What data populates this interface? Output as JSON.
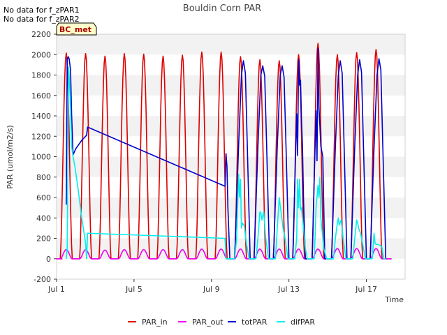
{
  "notes": [
    "No data for f_zPAR1",
    "No data for f_zPAR2"
  ],
  "site_label": "BC_met",
  "chart_data": {
    "type": "line",
    "title": "Bouldin Corn PAR",
    "xlabel": "Time",
    "ylabel": "PAR (umol/m2/s)",
    "ylim": [
      -200,
      2200
    ],
    "xlim": [
      1,
      19
    ],
    "yticks": [
      -200,
      0,
      200,
      400,
      600,
      800,
      1000,
      1200,
      1400,
      1600,
      1800,
      2000,
      2200
    ],
    "xticks": [
      {
        "value": 1,
        "label": "Jul 1"
      },
      {
        "value": 5,
        "label": "Jul 5"
      },
      {
        "value": 9,
        "label": "Jul 9"
      },
      {
        "value": 13,
        "label": "Jul 13"
      },
      {
        "value": 17,
        "label": "Jul 17"
      }
    ],
    "grid": "horizontal bands",
    "legend_position": "bottom",
    "series": [
      {
        "name": "PAR_in",
        "color": "#dd0000",
        "days": [
          1,
          2,
          3,
          4,
          5,
          6,
          7,
          8,
          9,
          10,
          11,
          12,
          13,
          14,
          15,
          16,
          17
        ],
        "daily_peak": [
          2015,
          2010,
          1985,
          2010,
          2005,
          1985,
          1995,
          2025,
          2025,
          1980,
          1950,
          1940,
          2000,
          2110,
          2000,
          2020,
          2050
        ]
      },
      {
        "name": "PAR_out",
        "color": "#ee00ee",
        "days": [
          1,
          2,
          3,
          4,
          5,
          6,
          7,
          8,
          9,
          10,
          11,
          12,
          13,
          14,
          15,
          16,
          17
        ],
        "daily_peak": [
          90,
          90,
          85,
          90,
          90,
          90,
          90,
          95,
          95,
          95,
          95,
          95,
          95,
          95,
          100,
          100,
          100
        ]
      },
      {
        "name": "totPAR",
        "color": "#0000cc",
        "x": [
          1.5,
          1.55,
          1.6,
          1.65,
          1.72,
          1.78,
          1.85,
          1.9,
          2.0,
          2.3,
          2.55,
          2.6,
          9.7,
          9.75,
          9.8,
          9.85,
          9.95,
          10.0,
          10.2,
          10.4,
          10.55,
          10.65,
          10.75,
          10.85,
          11.0,
          11.2,
          11.4,
          11.55,
          11.65,
          11.75,
          11.85,
          12.0,
          12.2,
          12.4,
          12.55,
          12.65,
          12.75,
          12.85,
          13.0,
          13.2,
          13.4,
          13.45,
          13.5,
          13.55,
          13.6,
          13.65,
          13.7,
          13.75,
          13.85,
          14.0,
          14.2,
          14.4,
          14.45,
          14.5,
          14.55,
          14.6,
          14.65,
          14.75,
          14.85,
          15.0,
          15.2,
          15.4,
          15.55,
          15.65,
          15.75,
          15.85,
          16.0,
          16.2,
          16.4,
          16.55,
          16.65,
          16.75,
          16.85,
          17.0,
          17.2,
          17.4,
          17.55,
          17.65,
          17.75,
          17.85,
          18.0
        ],
        "y": [
          530,
          1950,
          1980,
          1960,
          1850,
          1400,
          1020,
          1040,
          1080,
          1160,
          1210,
          1290,
          710,
          1030,
          900,
          500,
          0,
          0,
          0,
          1100,
          1800,
          1940,
          1820,
          1100,
          0,
          0,
          1100,
          1800,
          1890,
          1790,
          1100,
          0,
          0,
          1100,
          1800,
          1890,
          1780,
          1100,
          0,
          0,
          1420,
          1010,
          1950,
          1700,
          1750,
          1350,
          1100,
          600,
          0,
          0,
          0,
          1450,
          960,
          2060,
          1500,
          1300,
          1100,
          1000,
          0,
          0,
          0,
          1100,
          1800,
          1940,
          1820,
          1100,
          0,
          0,
          1100,
          1800,
          1950,
          1830,
          1100,
          0,
          0,
          1100,
          1800,
          1960,
          1850,
          1100,
          0
        ]
      },
      {
        "name": "difPAR",
        "color": "#00eeee",
        "x": [
          1.5,
          1.55,
          1.62,
          1.7,
          1.78,
          1.85,
          1.95,
          2.1,
          2.3,
          2.5,
          2.55,
          2.6,
          9.7,
          9.75,
          10.0,
          10.2,
          10.3,
          10.4,
          10.45,
          10.5,
          10.55,
          10.6,
          10.7,
          10.8,
          10.95,
          11.0,
          11.3,
          11.4,
          11.5,
          11.55,
          11.6,
          11.7,
          11.8,
          11.95,
          12.0,
          12.3,
          12.4,
          12.5,
          12.55,
          12.6,
          12.7,
          12.8,
          12.95,
          13.0,
          13.3,
          13.4,
          13.45,
          13.5,
          13.55,
          13.6,
          13.65,
          13.75,
          13.85,
          13.95,
          14.0,
          14.3,
          14.35,
          14.4,
          14.5,
          14.55,
          14.6,
          14.65,
          14.7,
          14.8,
          14.95,
          15.0,
          15.3,
          15.4,
          15.5,
          15.55,
          15.6,
          15.7,
          15.8,
          15.95,
          16.0,
          16.3,
          16.4,
          16.5,
          16.55,
          16.6,
          16.7,
          16.8,
          16.95,
          17.0,
          17.3,
          17.4,
          17.45,
          17.5,
          17.6,
          17.7,
          17.8,
          17.9,
          18.0
        ],
        "y": [
          0,
          100,
          1880,
          1600,
          1100,
          1000,
          900,
          700,
          400,
          150,
          0,
          250,
          200,
          0,
          0,
          0,
          200,
          830,
          600,
          780,
          300,
          350,
          320,
          150,
          0,
          0,
          0,
          200,
          460,
          450,
          380,
          460,
          200,
          0,
          0,
          0,
          300,
          600,
          520,
          450,
          300,
          200,
          0,
          0,
          0,
          200,
          780,
          500,
          780,
          480,
          500,
          300,
          100,
          0,
          0,
          0,
          200,
          500,
          720,
          600,
          800,
          400,
          300,
          100,
          0,
          0,
          0,
          200,
          350,
          400,
          330,
          380,
          200,
          0,
          0,
          0,
          200,
          380,
          350,
          300,
          250,
          150,
          0,
          0,
          0,
          250,
          150,
          140,
          140,
          130,
          120,
          0,
          0
        ]
      }
    ]
  }
}
